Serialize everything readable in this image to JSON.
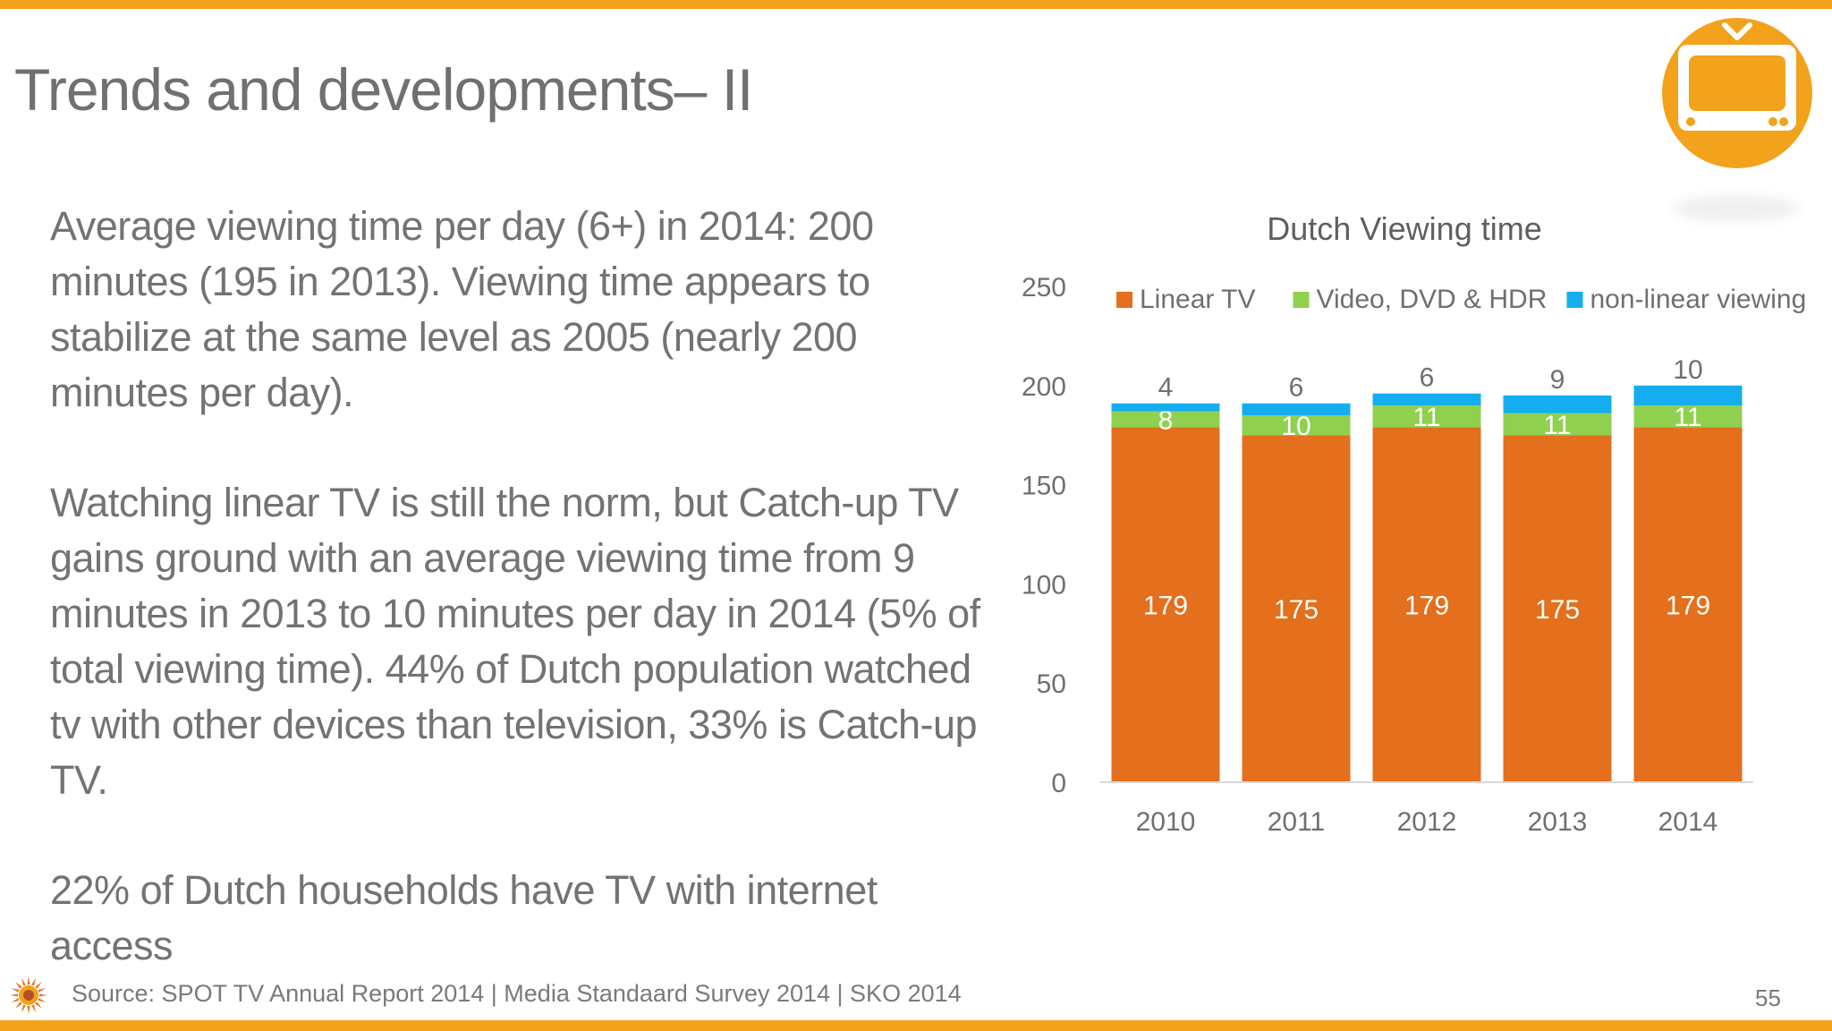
{
  "slide": {
    "title": "Trends and developments– II",
    "paragraphs": [
      "Average viewing time per day (6+) in 2014: 200 minutes (195 in 2013). Viewing time appears to stabilize at the same level as 2005 (nearly 200 minutes per day).",
      "Watching linear TV is still the norm, but Catch-up TV gains ground with an average viewing time from 9 minutes in 2013 to 10 minutes per day in 2014 (5% of total viewing time). 44% of Dutch population watched tv with other devices than television, 33% is Catch-up TV.",
      "22% of Dutch households have TV with internet access"
    ],
    "source": "Source: SPOT TV Annual Report 2014 | Media Standaard Survey 2014 | SKO 2014",
    "page_number": "55",
    "tv_icon": "tv-icon",
    "logo_icon": "sun-logo-icon",
    "accent_color": "#f2a21b"
  },
  "chart_data": {
    "type": "bar",
    "stacked": true,
    "title": "Dutch Viewing time",
    "categories": [
      "2010",
      "2011",
      "2012",
      "2013",
      "2014"
    ],
    "series": [
      {
        "name": "Linear TV",
        "color": "#e46f1d",
        "values": [
          179,
          175,
          179,
          175,
          179
        ]
      },
      {
        "name": "Video, DVD & HDR",
        "color": "#8fd14f",
        "values": [
          8,
          10,
          11,
          11,
          11
        ]
      },
      {
        "name": "non-linear viewing",
        "color": "#14aeef",
        "values": [
          4,
          6,
          6,
          9,
          10
        ]
      }
    ],
    "ylim": [
      0,
      250
    ],
    "yticks": [
      0,
      50,
      100,
      150,
      200,
      250
    ],
    "legend": "top",
    "grid": false
  }
}
